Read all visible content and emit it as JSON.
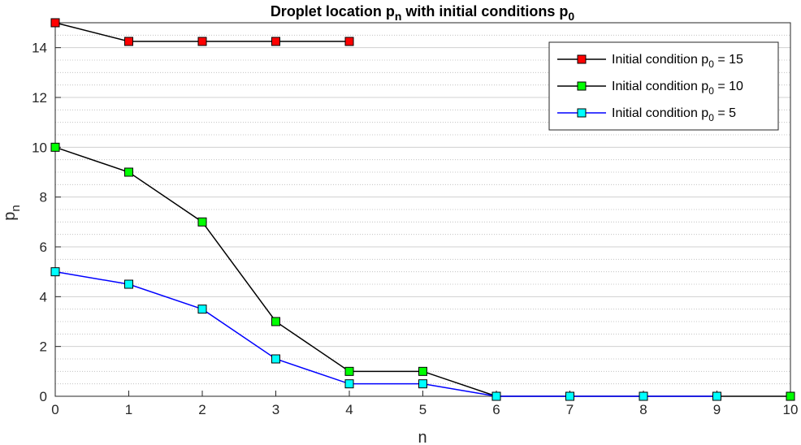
{
  "chart_data": {
    "type": "line",
    "title_main": "Droplet location p",
    "title_sub_n": "n",
    "title_mid": " with initial conditions p",
    "title_sub_0": "0",
    "xlabel": "n",
    "ylabel_main": "p",
    "ylabel_sub": "n",
    "xlim": [
      0,
      10
    ],
    "ylim": [
      0,
      15
    ],
    "xticks": [
      0,
      1,
      2,
      3,
      4,
      5,
      6,
      7,
      8,
      9,
      10
    ],
    "yticks": [
      0,
      2,
      4,
      6,
      8,
      10,
      12,
      14
    ],
    "grid_major": true,
    "grid_minor": true,
    "legend_position": "top-right",
    "series": [
      {
        "legend_prefix": "Initial condition p",
        "legend_sub": "0",
        "legend_suffix": " = 15",
        "line_color": "#000000",
        "marker_color": "#ff0000",
        "x": [
          0,
          1,
          2,
          3,
          4
        ],
        "y": [
          15,
          14.25,
          14.25,
          14.25,
          14.25
        ]
      },
      {
        "legend_prefix": "Initial condition p",
        "legend_sub": "0",
        "legend_suffix": " = 10",
        "line_color": "#000000",
        "marker_color": "#00ff00",
        "x": [
          0,
          1,
          2,
          3,
          4,
          5,
          6,
          7,
          8,
          9,
          10
        ],
        "y": [
          10,
          9,
          7,
          3,
          1,
          1,
          0,
          0,
          0,
          0,
          0
        ]
      },
      {
        "legend_prefix": "Initial condition p",
        "legend_sub": "0",
        "legend_suffix": " = 5",
        "line_color": "#0000ff",
        "marker_color": "#00ffff",
        "x": [
          0,
          1,
          2,
          3,
          4,
          5,
          6,
          7,
          8,
          9
        ],
        "y": [
          5,
          4.5,
          3.5,
          1.5,
          0.5,
          0.5,
          0,
          0,
          0,
          0
        ]
      }
    ]
  }
}
